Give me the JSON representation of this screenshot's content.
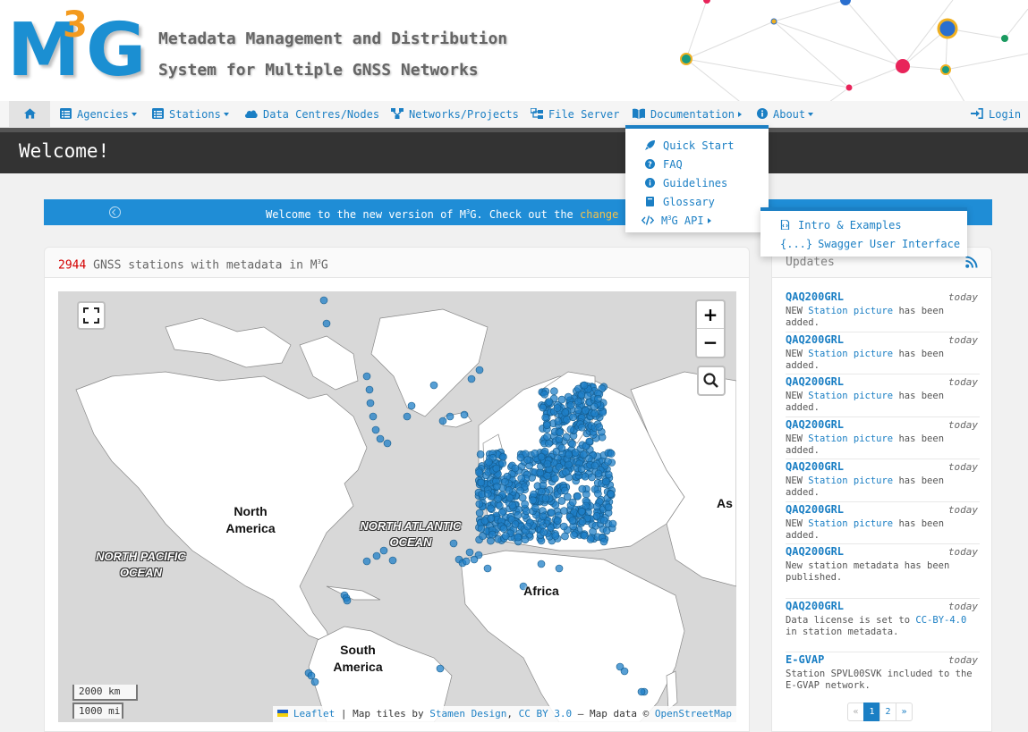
{
  "header": {
    "logo": {
      "m": "M",
      "sup": "3",
      "g": "G"
    },
    "tagline_1": "Metadata Management and Distribution",
    "tagline_2": "System for Multiple GNSS Networks"
  },
  "nav": {
    "home_icon": "home-icon",
    "agencies": "Agencies",
    "stations": "Stations",
    "data_centres": "Data Centres/Nodes",
    "networks": "Networks/Projects",
    "file_server": "File Server",
    "documentation": "Documentation",
    "about": "About",
    "login": "Login"
  },
  "documentation_menu": {
    "items": [
      "Quick Start",
      "FAQ",
      "Guidelines",
      "Glossary"
    ],
    "api_label_pre": "M",
    "api_label_sup": "3",
    "api_label_post": "G API"
  },
  "api_menu": {
    "items": [
      "Intro & Examples",
      "Swagger User Interface"
    ],
    "swagger_prefix": "{...}"
  },
  "welcome": {
    "title": "Welcome!"
  },
  "banner": {
    "text_pre": "Welcome to the new version of M",
    "text_sup": "3",
    "text_post": "G. Check out the ",
    "link": "change lo"
  },
  "stations_panel": {
    "count": "2944",
    "title_pre": " GNSS stations with metadata in M",
    "title_sup": "3",
    "title_post": "G"
  },
  "map": {
    "labels": {
      "north_america": "North\nAmerica",
      "south_america": "South\nAmerica",
      "africa": "Africa",
      "asia": "As",
      "north_atlantic": "NORTH ATLANTIC\nOCEAN",
      "north_pacific": "NORTH PACIFIC\nOCEAN"
    },
    "zoom_in": "+",
    "zoom_out": "−",
    "scale_km": "2000 km",
    "scale_mi": "1000 mi",
    "attribution": {
      "leaflet": "Leaflet",
      "sep1": " | Map tiles by ",
      "stamen": "Stamen Design",
      "sep2": ", ",
      "license": "CC BY 3.0",
      "sep3": " — Map data © ",
      "osm": "OpenStreetMap"
    },
    "marker_color": "#1f7fc7"
  },
  "updates": {
    "title": "Updates",
    "items": [
      {
        "station": "QAQ200GRL",
        "when": "today",
        "pre": "NEW ",
        "link": "Station picture",
        "post": " has been added."
      },
      {
        "station": "QAQ200GRL",
        "when": "today",
        "pre": "NEW ",
        "link": "Station picture",
        "post": " has been added."
      },
      {
        "station": "QAQ200GRL",
        "when": "today",
        "pre": "NEW ",
        "link": "Station picture",
        "post": " has been added."
      },
      {
        "station": "QAQ200GRL",
        "when": "today",
        "pre": "NEW ",
        "link": "Station picture",
        "post": " has been added."
      },
      {
        "station": "QAQ200GRL",
        "when": "today",
        "pre": "NEW ",
        "link": "Station picture",
        "post": " has been added."
      },
      {
        "station": "QAQ200GRL",
        "when": "today",
        "pre": "NEW ",
        "link": "Station picture",
        "post": " has been added."
      },
      {
        "station": "QAQ200GRL",
        "when": "today",
        "pre": "New station metadata has been published.",
        "link": "",
        "post": ""
      },
      {
        "station": "QAQ200GRL",
        "when": "today",
        "pre": "Data license is set to ",
        "link": "CC-BY-4.0",
        "post": " in station metadata."
      },
      {
        "station": "E-GVAP",
        "when": "today",
        "pre": "Station SPVL00SVK included to the E-GVAP network.",
        "link": "",
        "post": ""
      }
    ],
    "pager": [
      "«",
      "1",
      "2",
      "»"
    ]
  },
  "colors": {
    "brand_blue": "#1b8fd2",
    "accent_orange": "#f39a1e",
    "link": "#1b7fc4",
    "count_red": "#d40000"
  }
}
